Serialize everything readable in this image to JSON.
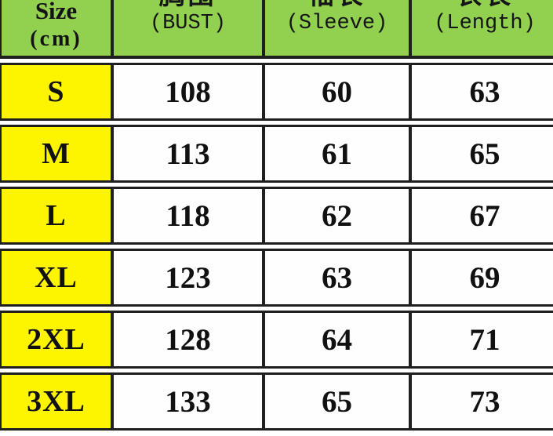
{
  "chart_data": {
    "type": "table",
    "columns": [
      "Size (cm)",
      "胸围 (BUST)",
      "袖长 (Sleeve)",
      "衣长 (Length)"
    ],
    "rows": [
      [
        "S",
        108,
        60,
        63
      ],
      [
        "M",
        113,
        61,
        65
      ],
      [
        "L",
        118,
        62,
        67
      ],
      [
        "XL",
        123,
        63,
        69
      ],
      [
        "2XL",
        128,
        64,
        71
      ],
      [
        "3XL",
        133,
        65,
        73
      ]
    ],
    "unit": "cm",
    "layout_hints": "green header row, yellow size column, table cropped at top and right edges"
  },
  "header": {
    "size_line1": "Size",
    "size_line2": "(cm)",
    "cols": [
      {
        "cn": "胸围",
        "en": "(BUST)"
      },
      {
        "cn": "袖长",
        "en": "(Sleeve)"
      },
      {
        "cn": "衣长",
        "en": "(Length)"
      }
    ]
  },
  "colors": {
    "header_bg": "#92d050",
    "size_column_bg": "#fdf500",
    "cell_bg": "#fefefe",
    "border": "#1f1f1f",
    "text": "#111111"
  }
}
